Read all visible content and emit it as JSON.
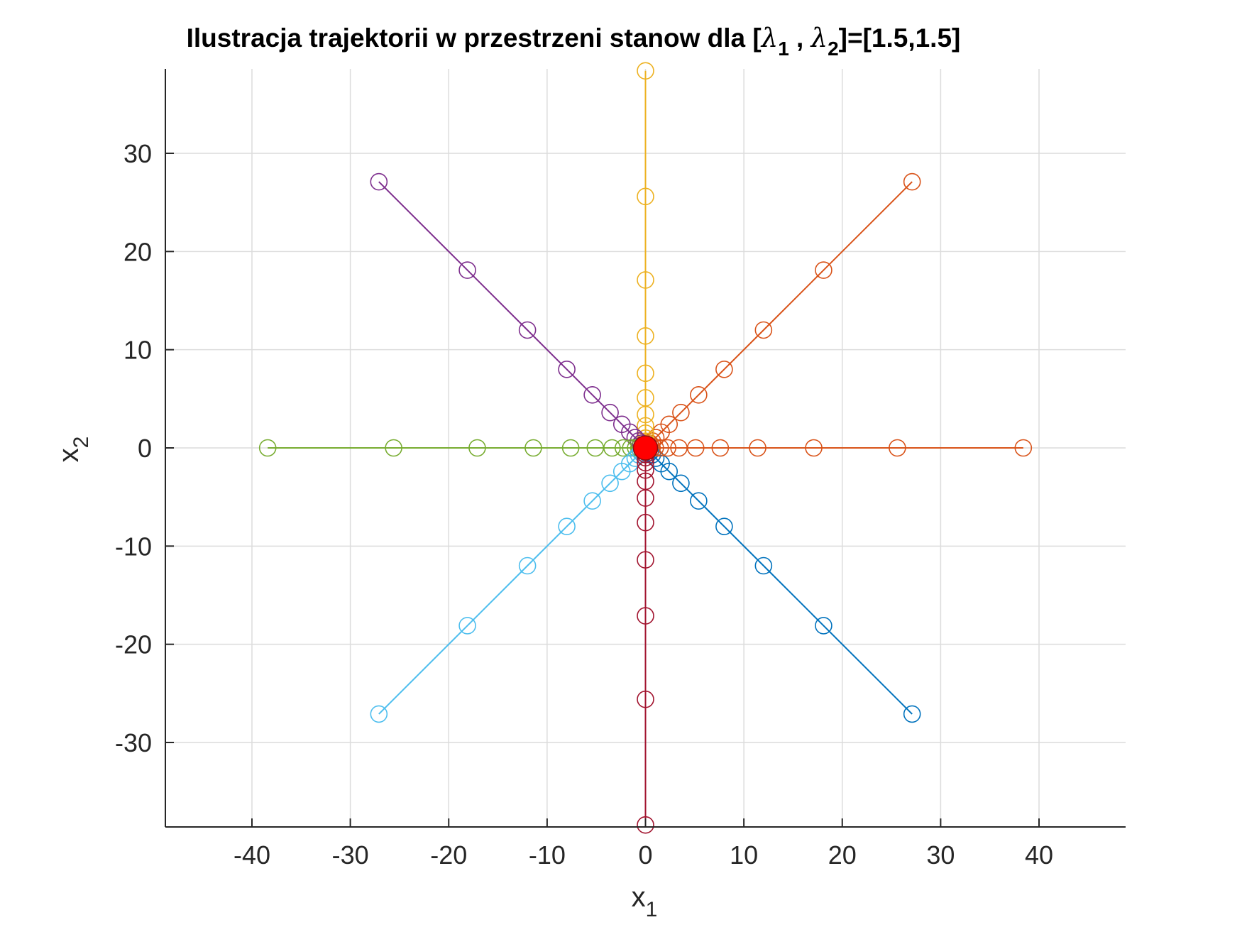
{
  "chart_data": {
    "type": "line",
    "title": {
      "prefix": "Ilustracja trajektorii w przestrzeni stanow dla [",
      "lambda": "λ",
      "sub1": "1",
      "sep": " , ",
      "sub2": "2",
      "suffix": "]=[1.5,1.5]"
    },
    "xlabel": {
      "base": "x",
      "sub": "1"
    },
    "ylabel": {
      "base": "x",
      "sub": "2"
    },
    "xlim": [
      -48.8,
      48.8
    ],
    "ylim": [
      -38.6,
      38.6
    ],
    "xticks": [
      -40,
      -30,
      -20,
      -10,
      0,
      10,
      20,
      30,
      40
    ],
    "yticks": [
      -30,
      -20,
      -10,
      0,
      10,
      20,
      30
    ],
    "xtick_labels": [
      "-40",
      "-30",
      "-20",
      "-10",
      "0",
      "10",
      "20",
      "30",
      "40"
    ],
    "ytick_labels": [
      "-30",
      "-20",
      "-10",
      "0",
      "10",
      "20",
      "30"
    ],
    "grid": true,
    "marker": "circle",
    "series": [
      {
        "color": "#0072BD",
        "x": [
          27.1,
          18.1,
          12.0,
          8.0,
          5.4,
          3.6,
          2.4,
          1.6,
          1.05,
          0.7,
          0.47,
          0.31,
          0.21,
          0.14,
          0.09,
          0.06,
          0.04,
          0.03,
          0.02,
          0.01,
          0.0
        ],
        "y": [
          -27.1,
          -18.1,
          -12.0,
          -8.0,
          -5.4,
          -3.6,
          -2.4,
          -1.6,
          -1.05,
          -0.7,
          -0.47,
          -0.31,
          -0.21,
          -0.14,
          -0.09,
          -0.06,
          -0.04,
          -0.03,
          -0.02,
          -0.01,
          0.0
        ]
      },
      {
        "color": "#D95319",
        "x": [
          38.4,
          25.6,
          17.1,
          11.4,
          7.6,
          5.1,
          3.4,
          2.25,
          1.5,
          1.0,
          0.67,
          0.44,
          0.3,
          0.2,
          0.13,
          0.09,
          0.06,
          0.04,
          0.03,
          0.02,
          0.0
        ],
        "y": [
          0,
          0,
          0,
          0,
          0,
          0,
          0,
          0,
          0,
          0,
          0,
          0,
          0,
          0,
          0,
          0,
          0,
          0,
          0,
          0,
          0
        ]
      },
      {
        "color": "#D95319",
        "x": [
          27.1,
          18.1,
          12.0,
          8.0,
          5.4,
          3.6,
          2.4,
          1.6,
          1.05,
          0.7,
          0.47,
          0.31,
          0.21,
          0.14,
          0.09,
          0.06,
          0.04,
          0.03,
          0.02,
          0.01,
          0.0
        ],
        "y": [
          27.1,
          18.1,
          12.0,
          8.0,
          5.4,
          3.6,
          2.4,
          1.6,
          1.05,
          0.7,
          0.47,
          0.31,
          0.21,
          0.14,
          0.09,
          0.06,
          0.04,
          0.03,
          0.02,
          0.01,
          0.0
        ]
      },
      {
        "color": "#EDB120",
        "x": [
          0,
          0,
          0,
          0,
          0,
          0,
          0,
          0,
          0,
          0,
          0,
          0,
          0,
          0,
          0,
          0,
          0,
          0,
          0,
          0,
          0
        ],
        "y": [
          38.4,
          25.6,
          17.1,
          11.4,
          7.6,
          5.1,
          3.4,
          2.25,
          1.5,
          1.0,
          0.67,
          0.44,
          0.3,
          0.2,
          0.13,
          0.09,
          0.06,
          0.04,
          0.03,
          0.02,
          0.0
        ]
      },
      {
        "color": "#7E2F8E",
        "x": [
          -27.1,
          -18.1,
          -12.0,
          -8.0,
          -5.4,
          -3.6,
          -2.4,
          -1.6,
          -1.05,
          -0.7,
          -0.47,
          -0.31,
          -0.21,
          -0.14,
          -0.09,
          -0.06,
          -0.04,
          -0.03,
          -0.02,
          -0.01,
          0.0
        ],
        "y": [
          27.1,
          18.1,
          12.0,
          8.0,
          5.4,
          3.6,
          2.4,
          1.6,
          1.05,
          0.7,
          0.47,
          0.31,
          0.21,
          0.14,
          0.09,
          0.06,
          0.04,
          0.03,
          0.02,
          0.01,
          0.0
        ]
      },
      {
        "color": "#77AC30",
        "x": [
          -38.4,
          -25.6,
          -17.1,
          -11.4,
          -7.6,
          -5.1,
          -3.4,
          -2.25,
          -1.5,
          -1.0,
          -0.67,
          -0.44,
          -0.3,
          -0.2,
          -0.13,
          -0.09,
          -0.06,
          -0.04,
          -0.03,
          -0.02,
          0.0
        ],
        "y": [
          0,
          0,
          0,
          0,
          0,
          0,
          0,
          0,
          0,
          0,
          0,
          0,
          0,
          0,
          0,
          0,
          0,
          0,
          0,
          0,
          0
        ]
      },
      {
        "color": "#4DBEEE",
        "x": [
          -27.1,
          -18.1,
          -12.0,
          -8.0,
          -5.4,
          -3.6,
          -2.4,
          -1.6,
          -1.05,
          -0.7,
          -0.47,
          -0.31,
          -0.21,
          -0.14,
          -0.09,
          -0.06,
          -0.04,
          -0.03,
          -0.02,
          -0.01,
          0.0
        ],
        "y": [
          -27.1,
          -18.1,
          -12.0,
          -8.0,
          -5.4,
          -3.6,
          -2.4,
          -1.6,
          -1.05,
          -0.7,
          -0.47,
          -0.31,
          -0.21,
          -0.14,
          -0.09,
          -0.06,
          -0.04,
          -0.03,
          -0.02,
          -0.01,
          0.0
        ]
      },
      {
        "color": "#A2142F",
        "x": [
          0,
          0,
          0,
          0,
          0,
          0,
          0,
          0,
          0,
          0,
          0,
          0,
          0,
          0,
          0,
          0,
          0,
          0,
          0,
          0,
          0
        ],
        "y": [
          -38.4,
          -25.6,
          -17.1,
          -11.4,
          -7.6,
          -5.1,
          -3.4,
          -2.25,
          -1.5,
          -1.0,
          -0.67,
          -0.44,
          -0.3,
          -0.2,
          -0.13,
          -0.09,
          -0.06,
          -0.04,
          -0.03,
          -0.02,
          0.0
        ]
      }
    ],
    "equilibrium": {
      "x": 0,
      "y": 0,
      "color": "#FF0000"
    }
  }
}
